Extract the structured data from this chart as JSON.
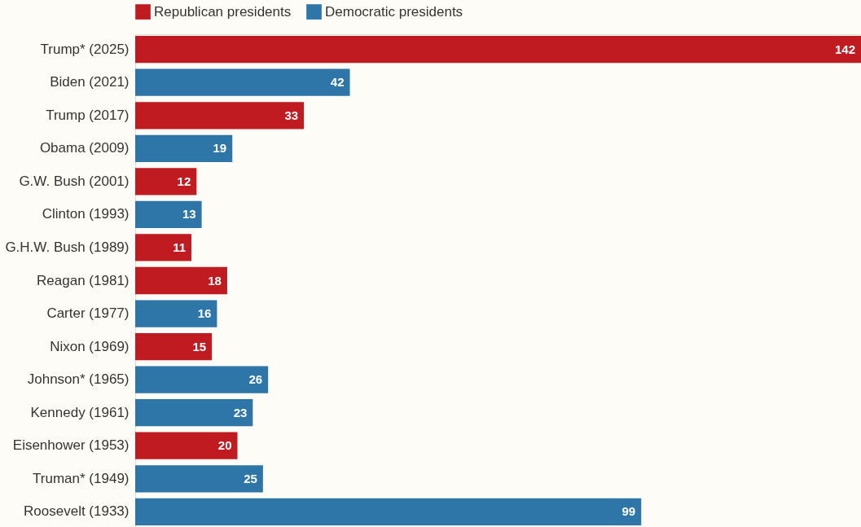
{
  "chart_data": {
    "type": "bar",
    "orientation": "horizontal",
    "legend": "top left",
    "data_labels": true,
    "grid": false,
    "categories": [
      "Trump* (2025)",
      "Biden (2021)",
      "Trump (2017)",
      "Obama (2009)",
      "G.W. Bush (2001)",
      "Clinton (1993)",
      "G.H.W. Bush (1989)",
      "Reagan (1981)",
      "Carter (1977)",
      "Nixon (1969)",
      "Johnson* (1965)",
      "Kennedy (1961)",
      "Eisenhower (1953)",
      "Truman* (1949)",
      "Roosevelt (1933)"
    ],
    "series": [
      {
        "name": "Republican presidents",
        "color": "#c01b21",
        "values": [
          142,
          null,
          33,
          null,
          12,
          null,
          11,
          18,
          null,
          15,
          null,
          null,
          20,
          null,
          null
        ]
      },
      {
        "name": "Democratic presidents",
        "color": "#2e75a8",
        "values": [
          null,
          42,
          null,
          19,
          null,
          13,
          null,
          null,
          16,
          null,
          26,
          23,
          null,
          25,
          99
        ]
      }
    ]
  }
}
